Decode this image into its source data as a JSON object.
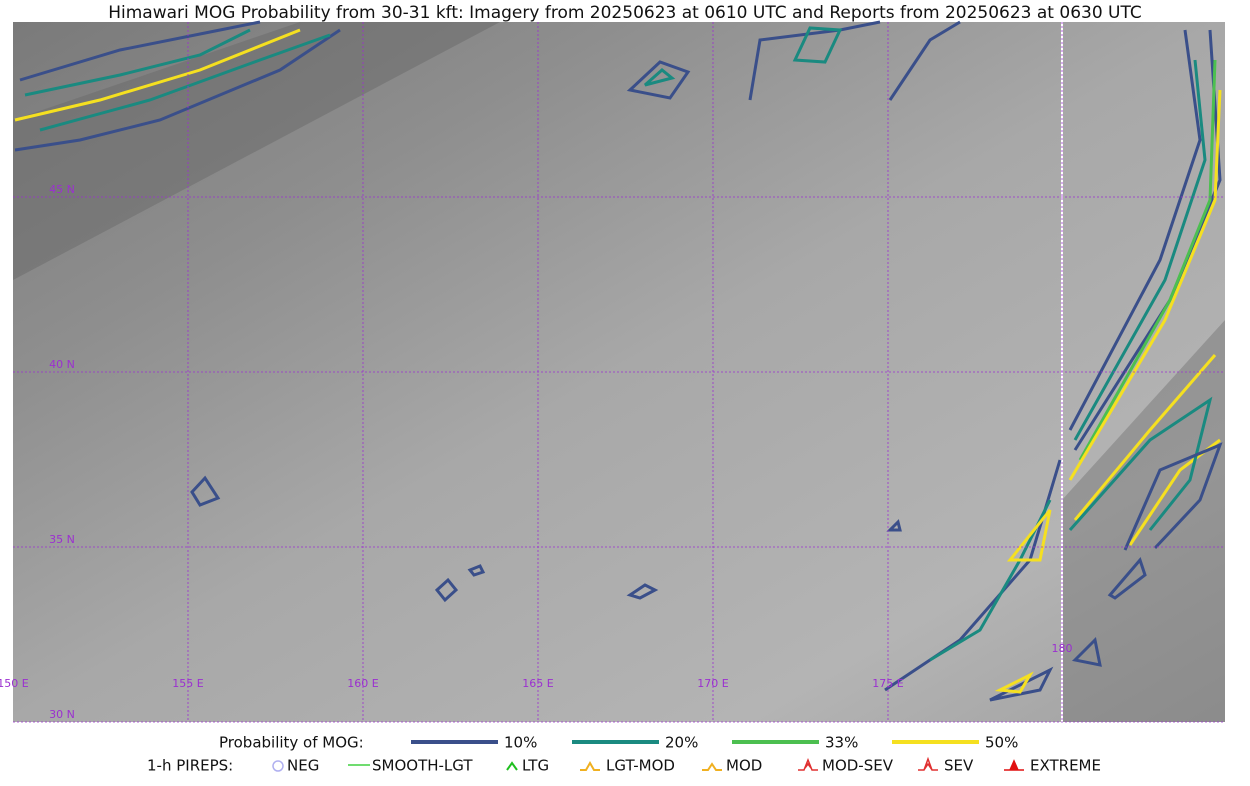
{
  "title": "Himawari MOG Probability from 30-31 kft: Imagery from 20250623 at 0610 UTC and Reports from 20250623 at 0630 UTC",
  "map": {
    "lat_labels": [
      "45 N",
      "40 N",
      "35 N",
      "30 N"
    ],
    "lon_labels": [
      "150 E",
      "155 E",
      "160 E",
      "165 E",
      "170 E",
      "175 E",
      "180"
    ]
  },
  "legend": {
    "probability": {
      "label": "Probability of MOG:",
      "entries": [
        {
          "label": "10%",
          "color": "#3a4f8a"
        },
        {
          "label": "20%",
          "color": "#1a8a80"
        },
        {
          "label": "33%",
          "color": "#4cbf50"
        },
        {
          "label": "50%",
          "color": "#f5e020"
        }
      ]
    },
    "pireps": {
      "label": "1-h PIREPS:",
      "entries": [
        {
          "label": "NEG",
          "color": "#b0b0f0"
        },
        {
          "label": "SMOOTH-LGT",
          "color": "#40d040"
        },
        {
          "label": "LTG",
          "color": "#20c020"
        },
        {
          "label": "LGT-MOD",
          "color": "#f0b020"
        },
        {
          "label": "MOD",
          "color": "#f0b020"
        },
        {
          "label": "MOD-SEV",
          "color": "#e03030"
        },
        {
          "label": "SEV",
          "color": "#e03030"
        },
        {
          "label": "EXTREME",
          "color": "#e01010"
        }
      ]
    }
  }
}
